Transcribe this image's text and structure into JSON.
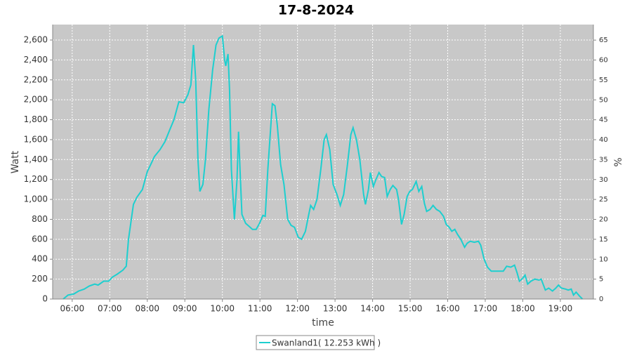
{
  "chart_data": {
    "type": "line",
    "title": "17-8-2024",
    "x_label": "time",
    "y_label": "Watt",
    "y2_label": "%",
    "x": [
      5.76,
      5.89,
      6.04,
      6.17,
      6.32,
      6.45,
      6.6,
      6.69,
      6.84,
      6.97,
      7.07,
      7.2,
      7.35,
      7.44,
      7.5,
      7.63,
      7.72,
      7.87,
      8.0,
      8.09,
      8.19,
      8.34,
      8.47,
      8.6,
      8.71,
      8.84,
      8.97,
      9.08,
      9.16,
      9.23,
      9.29,
      9.35,
      9.4,
      9.48,
      9.55,
      9.64,
      9.74,
      9.83,
      9.91,
      10.0,
      10.06,
      10.09,
      10.15,
      10.19,
      10.24,
      10.32,
      10.39,
      10.43,
      10.47,
      10.52,
      10.62,
      10.71,
      10.8,
      10.9,
      10.99,
      11.08,
      11.14,
      11.21,
      11.33,
      11.4,
      11.46,
      11.55,
      11.64,
      11.74,
      11.83,
      11.92,
      12.02,
      12.11,
      12.21,
      12.3,
      12.35,
      12.43,
      12.52,
      12.62,
      12.71,
      12.77,
      12.86,
      12.95,
      13.05,
      13.14,
      13.23,
      13.33,
      13.42,
      13.48,
      13.57,
      13.66,
      13.76,
      13.81,
      13.89,
      13.94,
      14.02,
      14.09,
      14.17,
      14.24,
      14.32,
      14.39,
      14.47,
      14.54,
      14.64,
      14.69,
      14.77,
      14.84,
      14.92,
      14.99,
      15.06,
      15.16,
      15.23,
      15.31,
      15.38,
      15.44,
      15.53,
      15.61,
      15.7,
      15.79,
      15.89,
      15.96,
      16.04,
      16.11,
      16.19,
      16.26,
      16.35,
      16.45,
      16.52,
      16.6,
      16.71,
      16.82,
      16.88,
      16.97,
      17.06,
      17.16,
      17.35,
      17.48,
      17.57,
      17.68,
      17.78,
      17.85,
      17.91,
      18.0,
      18.06,
      18.13,
      18.22,
      18.32,
      18.43,
      18.49,
      18.6,
      18.69,
      18.79,
      18.88,
      18.95,
      19.03,
      19.14,
      19.21,
      19.29,
      19.35,
      19.42,
      19.51,
      19.59
    ],
    "series": [
      {
        "name": "Swanland1( 12.253 kWh )",
        "color": "#1dcfcf",
        "values": [
          0,
          40,
          50,
          80,
          100,
          130,
          150,
          140,
          180,
          180,
          220,
          250,
          290,
          330,
          600,
          950,
          1020,
          1100,
          1280,
          1350,
          1430,
          1500,
          1580,
          1700,
          1800,
          1980,
          1970,
          2050,
          2150,
          2550,
          2200,
          1400,
          1080,
          1150,
          1400,
          1900,
          2300,
          2550,
          2620,
          2640,
          2400,
          2340,
          2460,
          2100,
          1300,
          800,
          1200,
          1680,
          1300,
          850,
          760,
          730,
          700,
          700,
          760,
          840,
          830,
          1300,
          1960,
          1940,
          1750,
          1350,
          1150,
          800,
          740,
          720,
          620,
          600,
          680,
          850,
          940,
          900,
          1000,
          1300,
          1600,
          1650,
          1500,
          1150,
          1050,
          940,
          1050,
          1350,
          1650,
          1720,
          1600,
          1400,
          1050,
          950,
          1100,
          1270,
          1130,
          1200,
          1270,
          1230,
          1220,
          1030,
          1100,
          1140,
          1100,
          1000,
          750,
          850,
          1030,
          1080,
          1100,
          1180,
          1080,
          1130,
          960,
          880,
          900,
          940,
          900,
          880,
          830,
          750,
          720,
          680,
          700,
          650,
          600,
          520,
          560,
          580,
          570,
          580,
          540,
          400,
          320,
          280,
          280,
          280,
          330,
          320,
          340,
          260,
          180,
          210,
          240,
          150,
          180,
          200,
          190,
          200,
          90,
          110,
          80,
          110,
          140,
          110,
          100,
          90,
          100,
          40,
          70,
          30,
          0
        ]
      }
    ],
    "xlim": [
      5.48,
      19.88
    ],
    "xticks": [
      {
        "value": 6,
        "label": "06:00"
      },
      {
        "value": 7,
        "label": "07:00"
      },
      {
        "value": 8,
        "label": "08:00"
      },
      {
        "value": 9,
        "label": "09:00"
      },
      {
        "value": 10,
        "label": "10:00"
      },
      {
        "value": 11,
        "label": "11:00"
      },
      {
        "value": 12,
        "label": "12:00"
      },
      {
        "value": 13,
        "label": "13:00"
      },
      {
        "value": 14,
        "label": "14:00"
      },
      {
        "value": 15,
        "label": "15:00"
      },
      {
        "value": 16,
        "label": "16:00"
      },
      {
        "value": 17,
        "label": "17:00"
      },
      {
        "value": 18,
        "label": "18:00"
      },
      {
        "value": 19,
        "label": "19:00"
      }
    ],
    "ylim": [
      0,
      2755
    ],
    "yticks": [
      0,
      200,
      400,
      600,
      800,
      {
        "value": 1000,
        "label": "1,000"
      },
      {
        "value": 1200,
        "label": "1,200"
      },
      {
        "value": 1400,
        "label": "1,400"
      },
      {
        "value": 1600,
        "label": "1,600"
      },
      {
        "value": 1800,
        "label": "1,800"
      },
      {
        "value": 2000,
        "label": "2,000"
      },
      {
        "value": 2200,
        "label": "2,200"
      },
      {
        "value": 2400,
        "label": "2,400"
      },
      {
        "value": 2600,
        "label": "2,600"
      }
    ],
    "y2lim": [
      0,
      68.9
    ],
    "y2ticks": [
      0,
      5,
      10,
      15,
      20,
      25,
      30,
      35,
      40,
      45,
      50,
      55,
      60,
      65
    ],
    "grid": true
  }
}
